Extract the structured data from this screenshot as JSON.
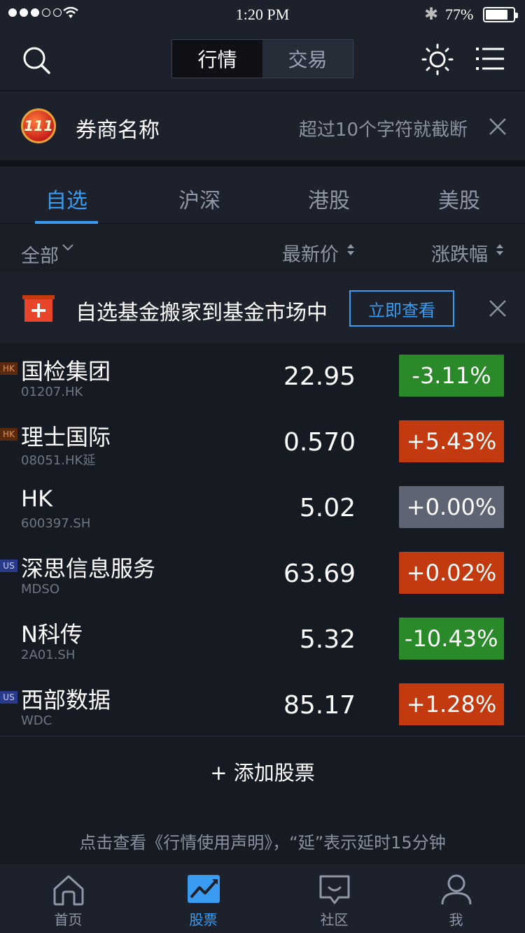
{
  "status": {
    "time": "1:20 PM",
    "battery": "77%",
    "battery_fill": 0.77
  },
  "nav": {
    "segments": [
      "行情",
      "交易"
    ],
    "active_segment": "行情"
  },
  "broker": {
    "logo_text": "111",
    "name": "券商名称",
    "note": "超过10个字符就截断"
  },
  "market_tabs": [
    "自选",
    "沪深",
    "港股",
    "美股"
  ],
  "columns": {
    "filter": "全部",
    "price": "最新价",
    "change": "涨跌幅"
  },
  "promo": {
    "text": "自选基金搬家到基金市场中",
    "button": "立即查看"
  },
  "stocks": [
    {
      "badge": "HK",
      "name": "国检集团",
      "code": "01207.HK",
      "price": "22.95",
      "change": "-3.11%"
    },
    {
      "badge": "HK",
      "name": "理士国际",
      "code": "08051.HK延",
      "price": "0.570",
      "change": "+5.43%"
    },
    {
      "badge": "",
      "name": "HK",
      "code": "600397.SH",
      "price": "5.02",
      "change": "+0.00%"
    },
    {
      "badge": "US",
      "name": "深思信息服务",
      "code": "MDSO",
      "price": "63.69",
      "change": "+0.02%"
    },
    {
      "badge": "",
      "name": "N科传",
      "code": "2A01.SH",
      "price": "5.32",
      "change": "-10.43%"
    },
    {
      "badge": "US",
      "name": "西部数据",
      "code": "WDC",
      "price": "85.17",
      "change": "+1.28%"
    }
  ],
  "add_stock": "+ 添加股票",
  "disclaimer": "点击查看《行情使用声明》，“延”表示延时15分钟",
  "tabbar": [
    "首页",
    "股票",
    "社区",
    "我"
  ],
  "colors": {
    "accent": "#3a9cf0",
    "up": "#c43a10",
    "down": "#2a8a2a",
    "flat": "#5e6472",
    "background": "#161a22"
  }
}
